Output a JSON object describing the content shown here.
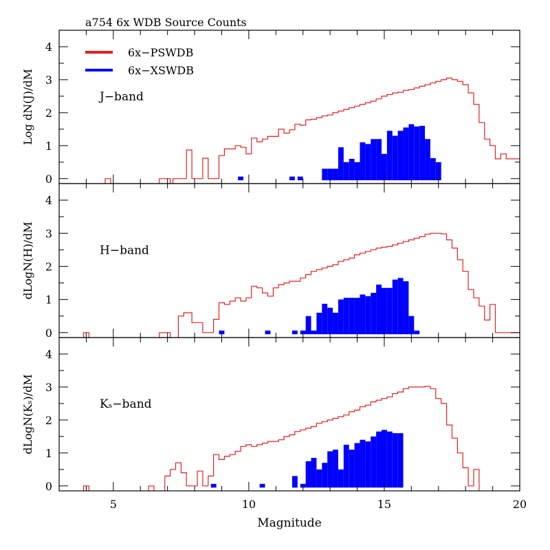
{
  "chart_data": {
    "type": "bar",
    "title": "a754  6x WDB Source Counts",
    "xlabel": "Magnitude",
    "xlim": [
      3,
      20
    ],
    "ylim": [
      -0.15,
      4.5
    ],
    "x_ticks": [
      "5",
      "10",
      "15",
      "20"
    ],
    "y_ticks": [
      "0",
      "1",
      "2",
      "3",
      "4"
    ],
    "colors": {
      "pswdb": "#e02020",
      "xswdb": "#0000ff"
    },
    "legend": [
      {
        "label": "6x−PSWDB",
        "color": "#e02020"
      },
      {
        "label": "6x−XSWDB",
        "color": "#0000ff"
      }
    ],
    "panels": [
      {
        "band": "J−band",
        "ylabel": "Log dN(J)/dM",
        "pswdb_step": [
          [
            3.0,
            -1
          ],
          [
            4.7,
            0.0
          ],
          [
            4.9,
            -1
          ],
          [
            6.7,
            0.0
          ],
          [
            7.1,
            -1
          ],
          [
            7.2,
            0.0
          ],
          [
            7.7,
            0.87
          ],
          [
            7.9,
            0.0
          ],
          [
            8.3,
            0.62
          ],
          [
            8.5,
            0.0
          ],
          [
            8.9,
            0.7
          ],
          [
            9.1,
            0.9
          ],
          [
            9.5,
            1.0
          ],
          [
            9.7,
            0.95
          ],
          [
            9.9,
            0.75
          ],
          [
            10.1,
            1.23
          ],
          [
            10.3,
            1.12
          ],
          [
            10.5,
            1.2
          ],
          [
            10.7,
            1.28
          ],
          [
            11.1,
            1.5
          ],
          [
            11.3,
            1.38
          ],
          [
            11.5,
            1.48
          ],
          [
            11.7,
            1.65
          ],
          [
            11.9,
            1.62
          ],
          [
            12.1,
            1.78
          ],
          [
            12.3,
            1.8
          ],
          [
            12.5,
            1.85
          ],
          [
            12.7,
            1.9
          ],
          [
            12.9,
            1.93
          ],
          [
            13.1,
            2.0
          ],
          [
            13.3,
            2.05
          ],
          [
            13.5,
            2.1
          ],
          [
            13.7,
            2.15
          ],
          [
            13.9,
            2.2
          ],
          [
            14.1,
            2.25
          ],
          [
            14.3,
            2.3
          ],
          [
            14.5,
            2.35
          ],
          [
            14.7,
            2.42
          ],
          [
            14.9,
            2.5
          ],
          [
            15.1,
            2.55
          ],
          [
            15.3,
            2.6
          ],
          [
            15.5,
            2.62
          ],
          [
            15.7,
            2.68
          ],
          [
            15.9,
            2.7
          ],
          [
            16.1,
            2.75
          ],
          [
            16.3,
            2.8
          ],
          [
            16.5,
            2.85
          ],
          [
            16.7,
            2.9
          ],
          [
            16.9,
            2.95
          ],
          [
            17.1,
            3.0
          ],
          [
            17.3,
            3.05
          ],
          [
            17.5,
            3.0
          ],
          [
            17.7,
            2.95
          ],
          [
            17.9,
            2.85
          ],
          [
            18.1,
            2.6
          ],
          [
            18.3,
            2.25
          ],
          [
            18.5,
            1.7
          ],
          [
            18.7,
            1.2
          ],
          [
            18.9,
            1.0
          ],
          [
            19.1,
            0.6
          ],
          [
            19.3,
            0.75
          ],
          [
            19.5,
            0.6
          ],
          [
            19.7,
            0.6
          ],
          [
            20.0,
            0.6
          ]
        ],
        "xswdb_bars": [
          [
            9.6,
            0.0
          ],
          [
            11.5,
            0.0
          ],
          [
            11.8,
            0.0
          ],
          [
            12.7,
            0.3
          ],
          [
            12.9,
            0.3
          ],
          [
            13.1,
            0.3
          ],
          [
            13.3,
            0.95
          ],
          [
            13.5,
            0.5
          ],
          [
            13.7,
            0.6
          ],
          [
            13.9,
            0.5
          ],
          [
            14.1,
            1.1
          ],
          [
            14.3,
            1.05
          ],
          [
            14.5,
            1.2
          ],
          [
            14.7,
            1.2
          ],
          [
            14.9,
            0.75
          ],
          [
            15.1,
            1.45
          ],
          [
            15.3,
            1.3
          ],
          [
            15.5,
            1.45
          ],
          [
            15.7,
            1.55
          ],
          [
            15.9,
            1.65
          ],
          [
            16.1,
            1.58
          ],
          [
            16.3,
            1.6
          ],
          [
            16.5,
            1.2
          ],
          [
            16.7,
            0.62
          ],
          [
            16.9,
            0.5
          ]
        ]
      },
      {
        "band": "H−band",
        "ylabel": "dLogN(H)/dM",
        "pswdb_step": [
          [
            3.0,
            -1
          ],
          [
            3.9,
            0.0
          ],
          [
            4.1,
            -1
          ],
          [
            4.5,
            -1
          ],
          [
            6.7,
            0.0
          ],
          [
            7.1,
            -1
          ],
          [
            7.4,
            0.5
          ],
          [
            7.6,
            0.6
          ],
          [
            7.9,
            0.3
          ],
          [
            8.3,
            0.0
          ],
          [
            8.7,
            0.4
          ],
          [
            8.9,
            0.9
          ],
          [
            9.1,
            0.85
          ],
          [
            9.3,
            0.95
          ],
          [
            9.5,
            1.05
          ],
          [
            9.7,
            0.95
          ],
          [
            9.9,
            1.05
          ],
          [
            10.1,
            1.4
          ],
          [
            10.3,
            1.35
          ],
          [
            10.5,
            1.2
          ],
          [
            10.7,
            1.1
          ],
          [
            10.9,
            1.35
          ],
          [
            11.1,
            1.45
          ],
          [
            11.3,
            1.5
          ],
          [
            11.5,
            1.55
          ],
          [
            11.7,
            1.55
          ],
          [
            11.9,
            1.65
          ],
          [
            12.1,
            1.75
          ],
          [
            12.3,
            1.85
          ],
          [
            12.5,
            1.9
          ],
          [
            12.7,
            1.95
          ],
          [
            12.9,
            2.0
          ],
          [
            13.1,
            2.05
          ],
          [
            13.3,
            2.15
          ],
          [
            13.5,
            2.2
          ],
          [
            13.7,
            2.25
          ],
          [
            13.9,
            2.35
          ],
          [
            14.1,
            2.4
          ],
          [
            14.3,
            2.45
          ],
          [
            14.5,
            2.5
          ],
          [
            14.7,
            2.55
          ],
          [
            14.9,
            2.58
          ],
          [
            15.1,
            2.6
          ],
          [
            15.3,
            2.65
          ],
          [
            15.5,
            2.7
          ],
          [
            15.7,
            2.75
          ],
          [
            15.9,
            2.8
          ],
          [
            16.1,
            2.85
          ],
          [
            16.3,
            2.9
          ],
          [
            16.5,
            2.97
          ],
          [
            16.7,
            3.0
          ],
          [
            16.9,
            3.0
          ],
          [
            17.1,
            2.98
          ],
          [
            17.3,
            2.8
          ],
          [
            17.5,
            2.55
          ],
          [
            17.7,
            2.2
          ],
          [
            17.9,
            1.85
          ],
          [
            18.1,
            1.3
          ],
          [
            18.3,
            1.05
          ],
          [
            18.5,
            0.8
          ],
          [
            18.7,
            0.38
          ],
          [
            18.9,
            0.85
          ],
          [
            19.1,
            0.0
          ],
          [
            19.3,
            0.0
          ],
          [
            19.5,
            0.0
          ],
          [
            19.7,
            0.0
          ],
          [
            20.0,
            0.0
          ]
        ],
        "xswdb_bars": [
          [
            8.9,
            0.0
          ],
          [
            10.6,
            0.0
          ],
          [
            11.6,
            0.0
          ],
          [
            11.9,
            0.0
          ],
          [
            12.1,
            0.5
          ],
          [
            12.3,
            0.0
          ],
          [
            12.5,
            0.6
          ],
          [
            12.7,
            0.87
          ],
          [
            12.9,
            0.75
          ],
          [
            13.1,
            0.6
          ],
          [
            13.3,
            1.0
          ],
          [
            13.5,
            1.05
          ],
          [
            13.7,
            1.05
          ],
          [
            13.9,
            1.05
          ],
          [
            14.1,
            1.15
          ],
          [
            14.3,
            1.1
          ],
          [
            14.5,
            1.2
          ],
          [
            14.7,
            1.45
          ],
          [
            14.9,
            1.35
          ],
          [
            15.1,
            1.35
          ],
          [
            15.3,
            1.6
          ],
          [
            15.5,
            1.65
          ],
          [
            15.7,
            1.55
          ],
          [
            15.9,
            0.5
          ],
          [
            16.1,
            0.0
          ]
        ]
      },
      {
        "band": "Kₛ−band",
        "ylabel": "dLogN(Kₛ)/dM",
        "pswdb_step": [
          [
            3.0,
            -1
          ],
          [
            3.9,
            0.0
          ],
          [
            4.1,
            -1
          ],
          [
            6.3,
            0.0
          ],
          [
            6.5,
            -1
          ],
          [
            6.9,
            0.3
          ],
          [
            7.1,
            0.5
          ],
          [
            7.3,
            0.7
          ],
          [
            7.5,
            0.4
          ],
          [
            7.7,
            0.0
          ],
          [
            8.1,
            0.45
          ],
          [
            8.3,
            0.0
          ],
          [
            8.5,
            0.3
          ],
          [
            8.7,
            0.95
          ],
          [
            8.9,
            0.8
          ],
          [
            9.1,
            0.9
          ],
          [
            9.3,
            0.95
          ],
          [
            9.5,
            1.05
          ],
          [
            9.7,
            1.2
          ],
          [
            9.9,
            1.25
          ],
          [
            10.1,
            1.2
          ],
          [
            10.3,
            1.25
          ],
          [
            10.5,
            1.3
          ],
          [
            10.7,
            1.35
          ],
          [
            10.9,
            1.35
          ],
          [
            11.1,
            1.4
          ],
          [
            11.3,
            1.5
          ],
          [
            11.5,
            1.55
          ],
          [
            11.7,
            1.65
          ],
          [
            11.9,
            1.7
          ],
          [
            12.1,
            1.75
          ],
          [
            12.3,
            1.8
          ],
          [
            12.5,
            1.9
          ],
          [
            12.7,
            1.95
          ],
          [
            12.9,
            2.0
          ],
          [
            13.1,
            2.05
          ],
          [
            13.3,
            2.1
          ],
          [
            13.5,
            2.15
          ],
          [
            13.7,
            2.25
          ],
          [
            13.9,
            2.3
          ],
          [
            14.1,
            2.4
          ],
          [
            14.3,
            2.45
          ],
          [
            14.5,
            2.55
          ],
          [
            14.7,
            2.6
          ],
          [
            14.9,
            2.65
          ],
          [
            15.1,
            2.7
          ],
          [
            15.3,
            2.8
          ],
          [
            15.5,
            2.85
          ],
          [
            15.7,
            2.95
          ],
          [
            15.9,
            3.0
          ],
          [
            16.1,
            3.0
          ],
          [
            16.3,
            3.0
          ],
          [
            16.5,
            3.02
          ],
          [
            16.7,
            2.95
          ],
          [
            16.9,
            2.65
          ],
          [
            17.1,
            2.5
          ],
          [
            17.3,
            1.85
          ],
          [
            17.5,
            1.45
          ],
          [
            17.7,
            1.0
          ],
          [
            17.9,
            0.55
          ],
          [
            18.1,
            0.0
          ],
          [
            18.3,
            0.5
          ],
          [
            18.5,
            -1
          ],
          [
            20.0,
            -1
          ]
        ],
        "xswdb_bars": [
          [
            8.6,
            0.0
          ],
          [
            10.4,
            0.0
          ],
          [
            11.6,
            0.3
          ],
          [
            11.9,
            0.0
          ],
          [
            12.1,
            0.75
          ],
          [
            12.3,
            0.85
          ],
          [
            12.5,
            0.5
          ],
          [
            12.7,
            0.7
          ],
          [
            12.9,
            1.05
          ],
          [
            13.1,
            1.1
          ],
          [
            13.3,
            0.5
          ],
          [
            13.5,
            1.25
          ],
          [
            13.7,
            1.1
          ],
          [
            13.9,
            1.3
          ],
          [
            14.1,
            1.4
          ],
          [
            14.3,
            1.35
          ],
          [
            14.5,
            1.5
          ],
          [
            14.7,
            1.65
          ],
          [
            14.9,
            1.7
          ],
          [
            15.1,
            1.65
          ],
          [
            15.3,
            1.6
          ],
          [
            15.5,
            1.6
          ]
        ]
      }
    ]
  }
}
